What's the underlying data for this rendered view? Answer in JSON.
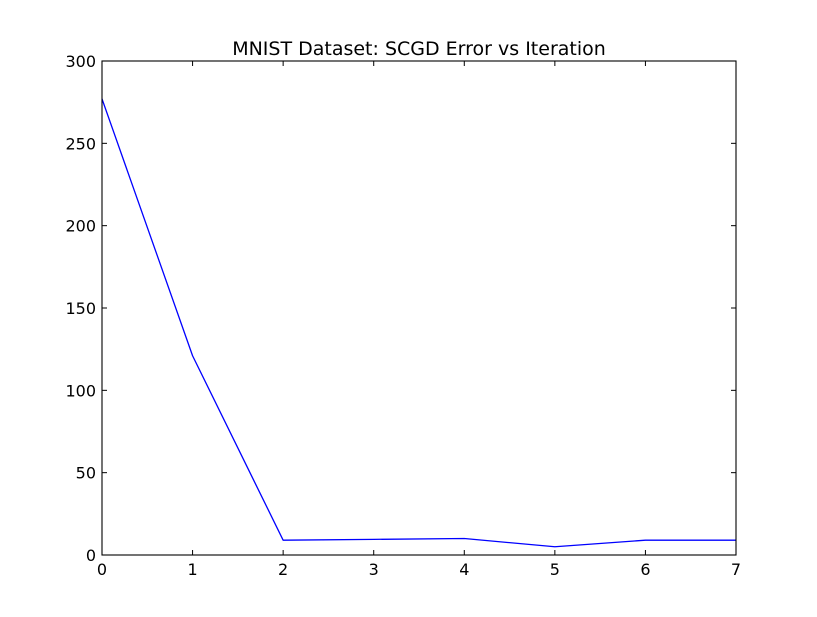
{
  "chart_data": {
    "type": "line",
    "title": "MNIST Dataset: SCGD Error vs Iteration",
    "xlabel": "",
    "ylabel": "",
    "xlim": [
      0,
      7
    ],
    "ylim": [
      0,
      300
    ],
    "x_ticks": [
      "0",
      "1",
      "2",
      "3",
      "4",
      "5",
      "6",
      "7"
    ],
    "y_ticks": [
      "0",
      "50",
      "100",
      "150",
      "200",
      "250",
      "300"
    ],
    "grid": false,
    "legend": "none",
    "series": [
      {
        "color": "#0000ff",
        "x": [
          0,
          1,
          2,
          3,
          4,
          5,
          6,
          7
        ],
        "y": [
          277,
          121,
          9,
          9.5,
          10,
          5,
          9,
          9
        ]
      }
    ]
  }
}
